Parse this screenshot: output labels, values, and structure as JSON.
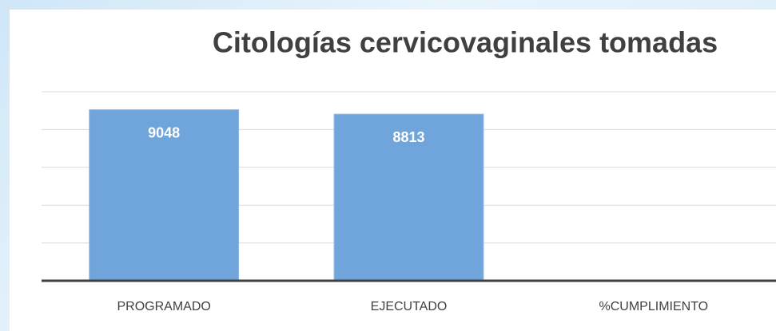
{
  "chart_data": {
    "type": "bar",
    "title": "Citologías cervicovaginales tomadas",
    "categories": [
      "PROGRAMADO",
      "EJECUTADO",
      "%CUMPLIMIENTO"
    ],
    "values": [
      9048,
      8813,
      null
    ],
    "color": "#6fa5da",
    "ylim": [
      0,
      10000
    ],
    "yticks": [
      0,
      2000,
      4000,
      6000,
      8000,
      10000
    ],
    "grid": true
  }
}
